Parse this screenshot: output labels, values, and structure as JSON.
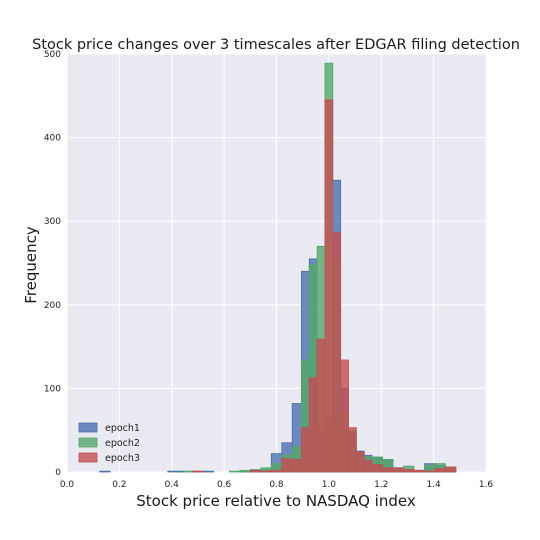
{
  "chart_data": {
    "type": "bar",
    "title": "Stock price changes over 3 timescales after EDGAR filing detection",
    "xlabel": "Stock price relative to NASDAQ index",
    "ylabel": "Frequency",
    "xlim": [
      0.0,
      1.6
    ],
    "ylim": [
      0,
      500
    ],
    "xticks": [
      "0.0",
      "0.2",
      "0.4",
      "0.6",
      "0.8",
      "1.0",
      "1.2",
      "1.4",
      "1.6"
    ],
    "yticks": [
      "0",
      "100",
      "200",
      "300",
      "400",
      "500"
    ],
    "grid": true,
    "legend_position": "lower-left",
    "background": "#EAEAF2",
    "series": [
      {
        "name": "epoch1",
        "color": "#4C72B0",
        "bins": [
          {
            "x0": 0.125,
            "x1": 0.165,
            "y": 1
          },
          {
            "x0": 0.385,
            "x1": 0.425,
            "y": 1
          },
          {
            "x0": 0.425,
            "x1": 0.465,
            "y": 1
          },
          {
            "x0": 0.48,
            "x1": 0.52,
            "y": 1
          },
          {
            "x0": 0.52,
            "x1": 0.56,
            "y": 1
          },
          {
            "x0": 0.66,
            "x1": 0.7,
            "y": 1
          },
          {
            "x0": 0.7,
            "x1": 0.74,
            "y": 2
          },
          {
            "x0": 0.74,
            "x1": 0.78,
            "y": 3
          },
          {
            "x0": 0.78,
            "x1": 0.82,
            "y": 22
          },
          {
            "x0": 0.82,
            "x1": 0.86,
            "y": 35
          },
          {
            "x0": 0.86,
            "x1": 0.895,
            "y": 82
          },
          {
            "x0": 0.895,
            "x1": 0.925,
            "y": 240
          },
          {
            "x0": 0.925,
            "x1": 0.955,
            "y": 255
          },
          {
            "x0": 0.955,
            "x1": 0.985,
            "y": 50
          },
          {
            "x0": 0.985,
            "x1": 1.015,
            "y": 60
          },
          {
            "x0": 1.015,
            "x1": 1.045,
            "y": 349
          },
          {
            "x0": 1.045,
            "x1": 1.075,
            "y": 100
          },
          {
            "x0": 1.075,
            "x1": 1.105,
            "y": 45
          },
          {
            "x0": 1.105,
            "x1": 1.135,
            "y": 25
          },
          {
            "x0": 1.135,
            "x1": 1.165,
            "y": 20
          },
          {
            "x0": 1.165,
            "x1": 1.205,
            "y": 17
          },
          {
            "x0": 1.205,
            "x1": 1.245,
            "y": 15
          },
          {
            "x0": 1.245,
            "x1": 1.285,
            "y": 5
          },
          {
            "x0": 1.285,
            "x1": 1.325,
            "y": 3
          },
          {
            "x0": 1.325,
            "x1": 1.365,
            "y": 2
          },
          {
            "x0": 1.365,
            "x1": 1.405,
            "y": 10
          },
          {
            "x0": 1.405,
            "x1": 1.445,
            "y": 8
          },
          {
            "x0": 1.445,
            "x1": 1.485,
            "y": 1
          }
        ]
      },
      {
        "name": "epoch2",
        "color": "#55A868",
        "bins": [
          {
            "x0": 0.445,
            "x1": 0.485,
            "y": 1
          },
          {
            "x0": 0.62,
            "x1": 0.66,
            "y": 1
          },
          {
            "x0": 0.66,
            "x1": 0.7,
            "y": 2
          },
          {
            "x0": 0.7,
            "x1": 0.74,
            "y": 3
          },
          {
            "x0": 0.74,
            "x1": 0.78,
            "y": 5
          },
          {
            "x0": 0.78,
            "x1": 0.82,
            "y": 10
          },
          {
            "x0": 0.82,
            "x1": 0.86,
            "y": 20
          },
          {
            "x0": 0.86,
            "x1": 0.895,
            "y": 30
          },
          {
            "x0": 0.895,
            "x1": 0.925,
            "y": 134
          },
          {
            "x0": 0.925,
            "x1": 0.955,
            "y": 248
          },
          {
            "x0": 0.955,
            "x1": 0.985,
            "y": 270
          },
          {
            "x0": 0.985,
            "x1": 1.015,
            "y": 489
          },
          {
            "x0": 1.015,
            "x1": 1.045,
            "y": 255
          },
          {
            "x0": 1.045,
            "x1": 1.075,
            "y": 70
          },
          {
            "x0": 1.075,
            "x1": 1.105,
            "y": 50
          },
          {
            "x0": 1.105,
            "x1": 1.135,
            "y": 22
          },
          {
            "x0": 1.135,
            "x1": 1.165,
            "y": 18
          },
          {
            "x0": 1.165,
            "x1": 1.205,
            "y": 18
          },
          {
            "x0": 1.205,
            "x1": 1.245,
            "y": 15
          },
          {
            "x0": 1.245,
            "x1": 1.285,
            "y": 5
          },
          {
            "x0": 1.285,
            "x1": 1.325,
            "y": 7
          },
          {
            "x0": 1.325,
            "x1": 1.365,
            "y": 2
          },
          {
            "x0": 1.365,
            "x1": 1.405,
            "y": 8
          },
          {
            "x0": 1.405,
            "x1": 1.445,
            "y": 10
          },
          {
            "x0": 1.445,
            "x1": 1.485,
            "y": 6
          }
        ]
      },
      {
        "name": "epoch3",
        "color": "#C44E52",
        "bins": [
          {
            "x0": 0.48,
            "x1": 0.52,
            "y": 1
          },
          {
            "x0": 0.7,
            "x1": 0.74,
            "y": 2
          },
          {
            "x0": 0.74,
            "x1": 0.78,
            "y": 1
          },
          {
            "x0": 0.78,
            "x1": 0.82,
            "y": 2
          },
          {
            "x0": 0.82,
            "x1": 0.86,
            "y": 16
          },
          {
            "x0": 0.86,
            "x1": 0.895,
            "y": 15
          },
          {
            "x0": 0.895,
            "x1": 0.925,
            "y": 53
          },
          {
            "x0": 0.925,
            "x1": 0.955,
            "y": 113
          },
          {
            "x0": 0.955,
            "x1": 0.985,
            "y": 159
          },
          {
            "x0": 0.985,
            "x1": 1.015,
            "y": 445
          },
          {
            "x0": 1.015,
            "x1": 1.045,
            "y": 286
          },
          {
            "x0": 1.045,
            "x1": 1.075,
            "y": 134
          },
          {
            "x0": 1.075,
            "x1": 1.105,
            "y": 53
          },
          {
            "x0": 1.105,
            "x1": 1.135,
            "y": 24
          },
          {
            "x0": 1.135,
            "x1": 1.165,
            "y": 14
          },
          {
            "x0": 1.165,
            "x1": 1.205,
            "y": 9
          },
          {
            "x0": 1.205,
            "x1": 1.245,
            "y": 5
          },
          {
            "x0": 1.245,
            "x1": 1.285,
            "y": 5
          },
          {
            "x0": 1.285,
            "x1": 1.325,
            "y": 3
          },
          {
            "x0": 1.325,
            "x1": 1.365,
            "y": 2
          },
          {
            "x0": 1.365,
            "x1": 1.405,
            "y": 1
          },
          {
            "x0": 1.405,
            "x1": 1.445,
            "y": 4
          },
          {
            "x0": 1.445,
            "x1": 1.485,
            "y": 6
          }
        ]
      }
    ]
  }
}
